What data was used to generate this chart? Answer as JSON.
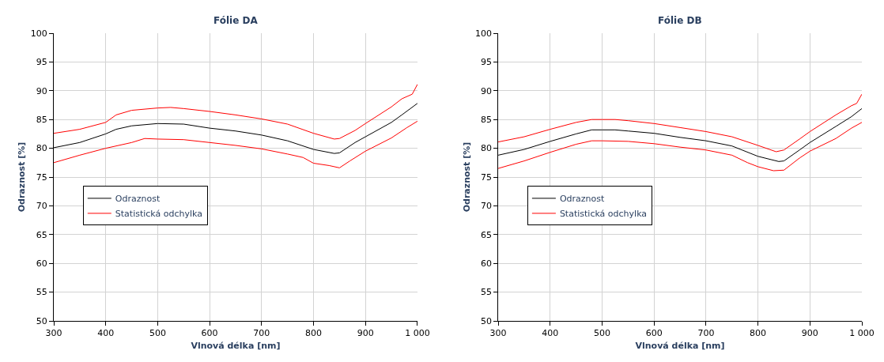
{
  "chart_data": [
    {
      "type": "line",
      "title": "Fólie DA",
      "xlabel": "Vlnová délka [nm]",
      "ylabel": "Odraznost [%]",
      "xlim": [
        300,
        1000
      ],
      "xticks": [
        300,
        400,
        500,
        600,
        700,
        800,
        900,
        {
          "value": 1000,
          "label": "1 000"
        }
      ],
      "ylim": [
        50,
        100
      ],
      "yticks": [
        50,
        55,
        60,
        65,
        70,
        75,
        80,
        85,
        90,
        95,
        100
      ],
      "grid": true,
      "legend": "left",
      "marker": "none",
      "line_style": "solid",
      "series": [
        {
          "name": "Odraznost",
          "color": "#000000",
          "x": [
            300,
            350,
            400,
            420,
            450,
            500,
            550,
            600,
            650,
            700,
            750,
            800,
            840,
            850,
            880,
            900,
            950,
            970,
            1000
          ],
          "values": [
            80.1,
            81.0,
            82.5,
            83.3,
            83.9,
            84.3,
            84.2,
            83.5,
            83.0,
            82.3,
            81.3,
            79.8,
            79.1,
            79.2,
            81.0,
            82.0,
            84.5,
            85.8,
            87.8
          ]
        },
        {
          "name": "Statistická odchylka",
          "color": "#ff0000",
          "x": [
            300,
            350,
            400,
            420,
            450,
            500,
            525,
            550,
            600,
            650,
            700,
            750,
            800,
            840,
            850,
            880,
            900,
            950,
            970,
            990,
            1000
          ],
          "values": [
            82.6,
            83.3,
            84.5,
            85.8,
            86.6,
            87.0,
            87.1,
            86.9,
            86.4,
            85.8,
            85.1,
            84.2,
            82.6,
            81.6,
            81.7,
            83.1,
            84.3,
            87.2,
            88.6,
            89.4,
            91.1
          ]
        },
        {
          "color": "#ff0000",
          "x": [
            300,
            350,
            400,
            450,
            475,
            500,
            550,
            600,
            650,
            700,
            750,
            780,
            800,
            830,
            850,
            870,
            900,
            950,
            980,
            1000
          ],
          "values": [
            77.5,
            78.8,
            80.0,
            81.0,
            81.7,
            81.6,
            81.5,
            81.0,
            80.5,
            79.9,
            79.0,
            78.4,
            77.4,
            77.0,
            76.6,
            77.8,
            79.5,
            81.8,
            83.6,
            84.7
          ]
        }
      ]
    },
    {
      "type": "line",
      "title": "Fólie DB",
      "xlabel": "Vlnová délka [nm]",
      "ylabel": "Odraznost [%]",
      "xlim": [
        300,
        1000
      ],
      "xticks": [
        300,
        400,
        500,
        600,
        700,
        800,
        900,
        {
          "value": 1000,
          "label": "1 000"
        }
      ],
      "ylim": [
        50,
        100
      ],
      "yticks": [
        50,
        55,
        60,
        65,
        70,
        75,
        80,
        85,
        90,
        95,
        100
      ],
      "grid": true,
      "legend": "left",
      "marker": "none",
      "line_style": "solid",
      "series": [
        {
          "name": "Odraznost",
          "color": "#000000",
          "x": [
            300,
            350,
            400,
            450,
            480,
            500,
            525,
            550,
            600,
            650,
            700,
            750,
            800,
            840,
            850,
            880,
            900,
            950,
            980,
            1000
          ],
          "values": [
            78.8,
            79.8,
            81.2,
            82.5,
            83.2,
            83.2,
            83.2,
            83.0,
            82.6,
            81.9,
            81.3,
            80.4,
            78.6,
            77.7,
            77.8,
            79.7,
            81.0,
            83.8,
            85.5,
            86.9
          ]
        },
        {
          "name": "Statistická odchylka",
          "color": "#ff0000",
          "x": [
            300,
            350,
            400,
            450,
            480,
            500,
            525,
            550,
            600,
            650,
            700,
            750,
            800,
            835,
            850,
            880,
            900,
            950,
            980,
            990,
            1000
          ],
          "values": [
            81.1,
            82.0,
            83.3,
            84.5,
            85.0,
            85.0,
            85.0,
            84.8,
            84.3,
            83.6,
            82.9,
            82.0,
            80.5,
            79.4,
            79.7,
            81.6,
            82.9,
            85.8,
            87.4,
            87.8,
            89.4
          ]
        },
        {
          "color": "#ff0000",
          "x": [
            300,
            350,
            400,
            450,
            480,
            500,
            550,
            600,
            650,
            700,
            750,
            780,
            800,
            830,
            850,
            880,
            900,
            950,
            980,
            1000
          ],
          "values": [
            76.5,
            77.8,
            79.3,
            80.7,
            81.3,
            81.3,
            81.2,
            80.8,
            80.2,
            79.7,
            78.8,
            77.5,
            76.8,
            76.1,
            76.2,
            78.3,
            79.5,
            81.7,
            83.5,
            84.5
          ]
        }
      ]
    }
  ]
}
